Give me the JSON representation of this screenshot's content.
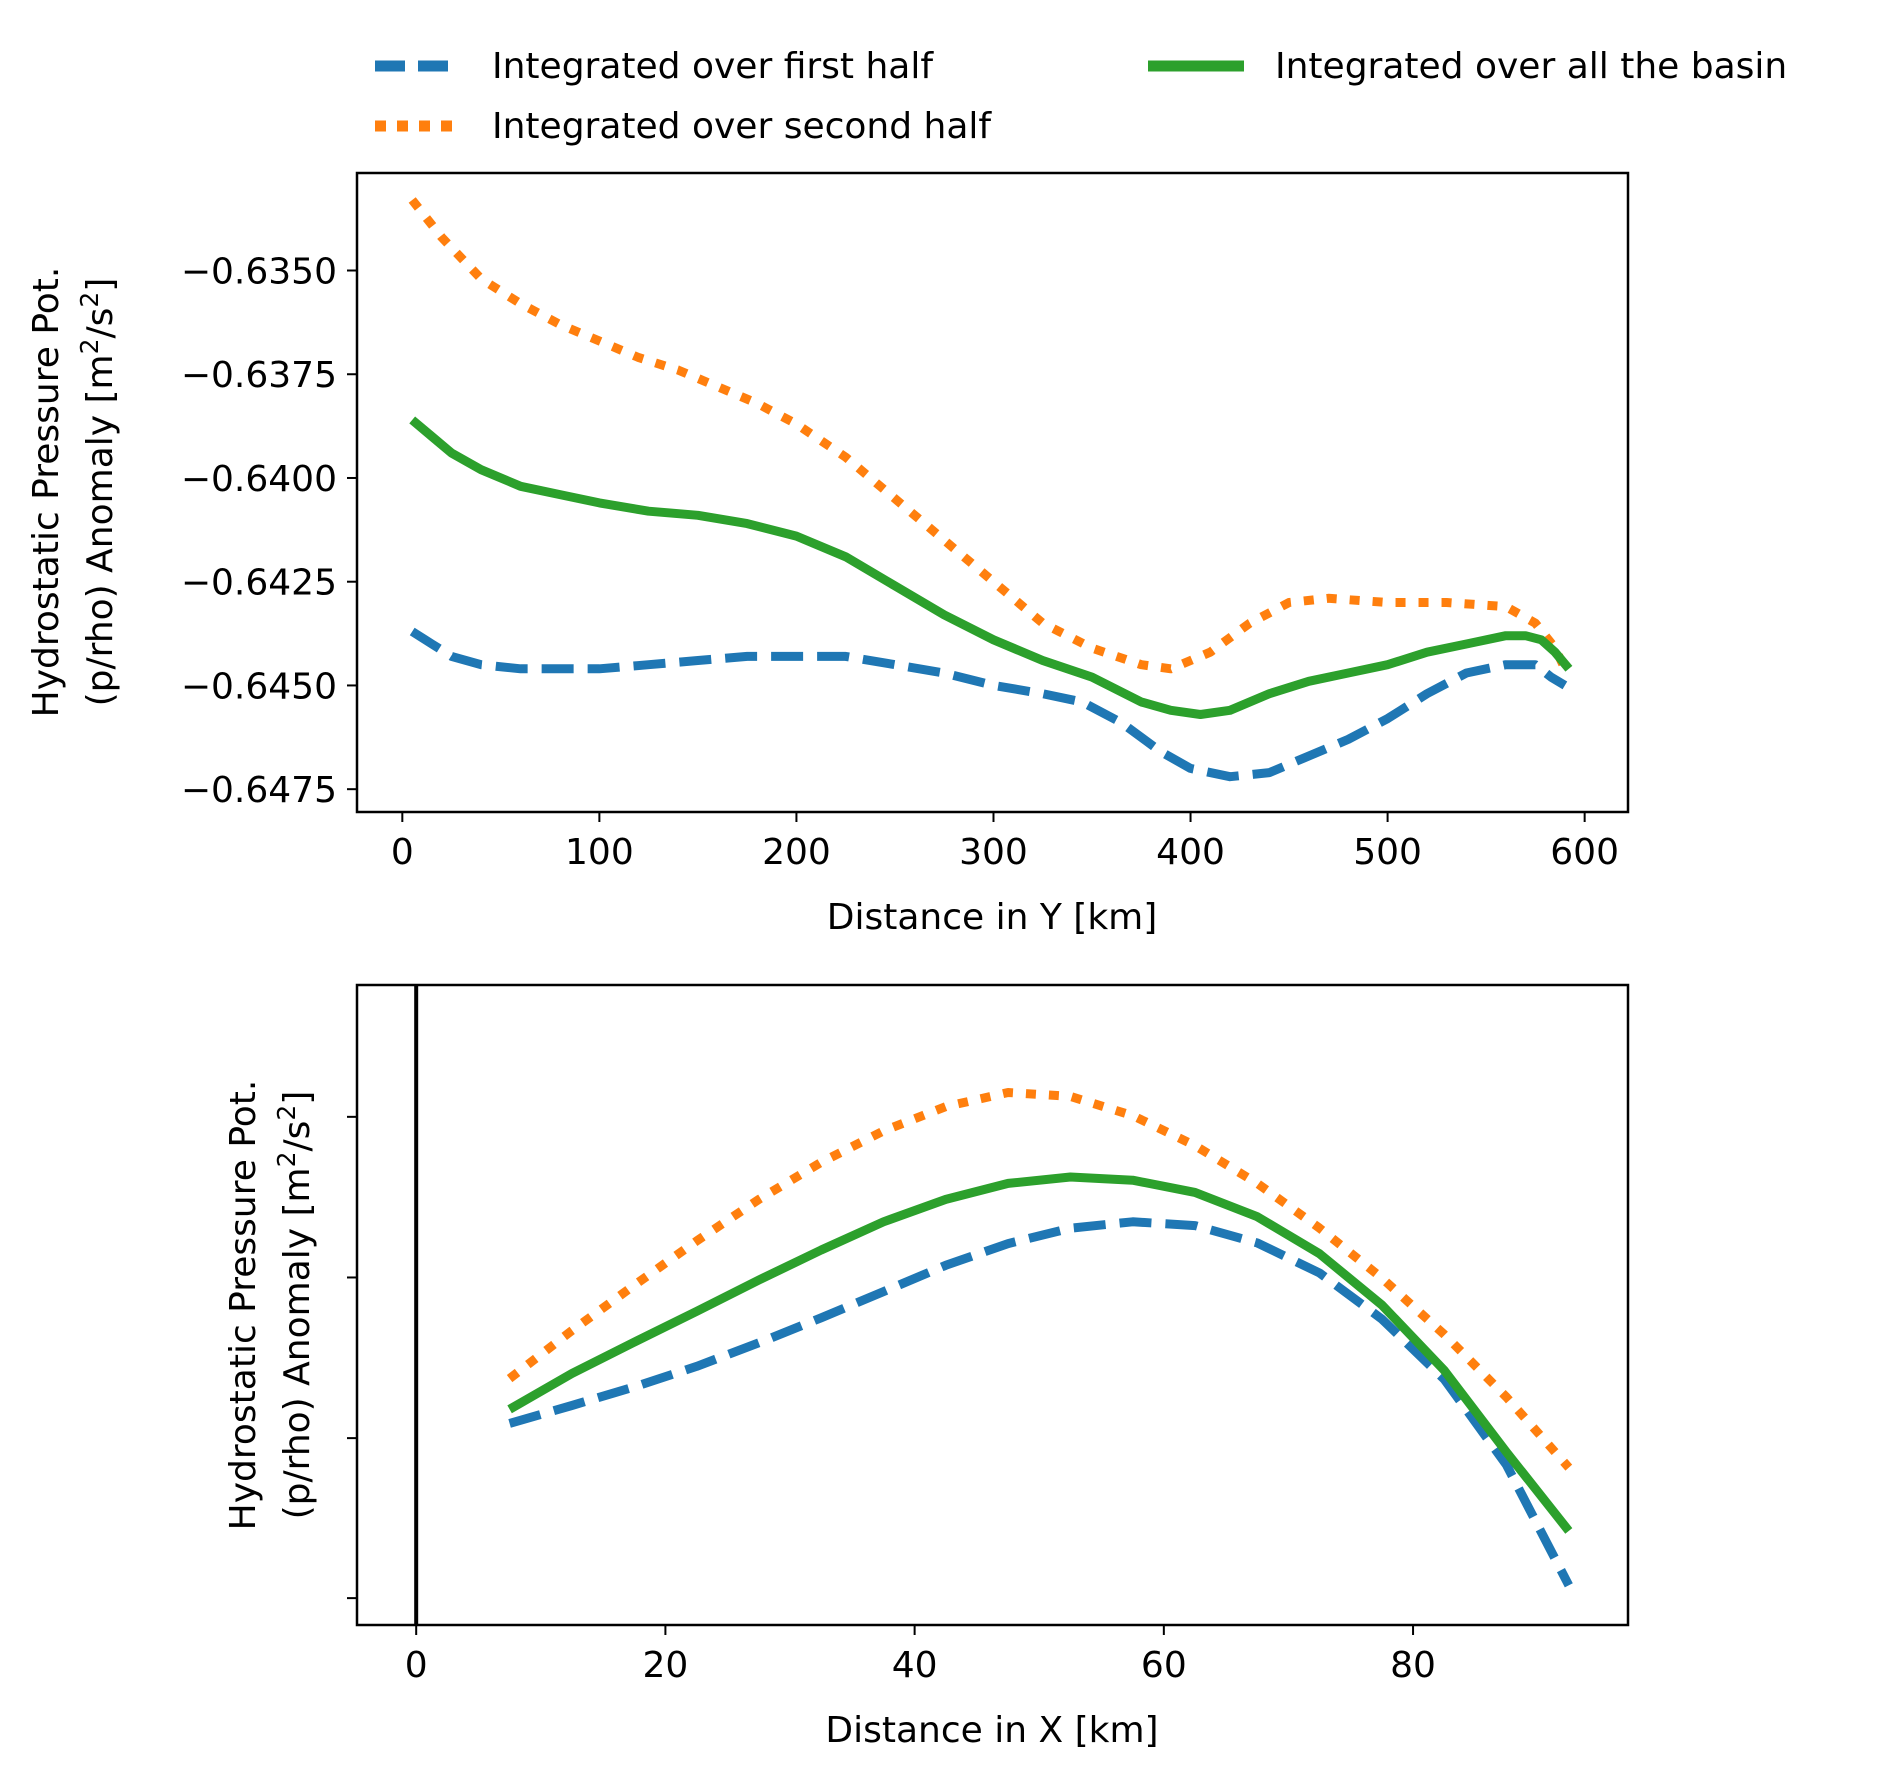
{
  "legend": {
    "placement": "top",
    "entries": [
      {
        "label": "Integrated over first half",
        "color": "#1f77b4",
        "style": "dashed"
      },
      {
        "label": "Integrated over second half",
        "color": "#ff7f0e",
        "style": "dotted"
      },
      {
        "label": "Integrated over all the basin",
        "color": "#2ca02c",
        "style": "solid"
      }
    ]
  },
  "chart_data": [
    {
      "type": "line",
      "xlabel": "Distance in Y [km]",
      "ylabel_line1": "Hydrostatic Pressure Pot.",
      "ylabel_line2_pre": "(p/rho) Anomaly [m",
      "ylabel_sup1": "2",
      "ylabel_mid": "/s",
      "ylabel_sup2": "2",
      "ylabel_end": "]",
      "xlim": [
        -23,
        622
      ],
      "ylim": [
        -0.64805,
        -0.63265
      ],
      "xticks": [
        0,
        100,
        200,
        300,
        400,
        500,
        600
      ],
      "xtick_labels": [
        "0",
        "100",
        "200",
        "300",
        "400",
        "500",
        "600"
      ],
      "yticks": [
        -0.6475,
        -0.645,
        -0.6425,
        -0.64,
        -0.6375,
        -0.635
      ],
      "ytick_labels": [
        "−0.6475",
        "−0.6450",
        "−0.6425",
        "−0.6400",
        "−0.6375",
        "−0.6350"
      ],
      "grid": false,
      "series": [
        {
          "name": "Integrated over first half",
          "color": "#1f77b4",
          "style": "dashed",
          "x": [
            5,
            15,
            25,
            40,
            60,
            80,
            100,
            125,
            150,
            175,
            200,
            225,
            250,
            275,
            300,
            325,
            345,
            365,
            385,
            400,
            420,
            440,
            460,
            480,
            500,
            520,
            540,
            560,
            575,
            583,
            590
          ],
          "y": [
            -0.6437,
            -0.644,
            -0.6443,
            -0.6445,
            -0.6446,
            -0.6446,
            -0.6446,
            -0.6445,
            -0.6444,
            -0.6443,
            -0.6443,
            -0.6443,
            -0.6445,
            -0.6447,
            -0.645,
            -0.6452,
            -0.6454,
            -0.6459,
            -0.6466,
            -0.647,
            -0.6472,
            -0.6471,
            -0.6467,
            -0.6463,
            -0.6458,
            -0.6452,
            -0.6447,
            -0.6445,
            -0.6445,
            -0.6448,
            -0.645
          ]
        },
        {
          "name": "Integrated over second half",
          "color": "#ff7f0e",
          "style": "dotted",
          "x": [
            5,
            20,
            40,
            60,
            80,
            100,
            120,
            140,
            160,
            180,
            200,
            225,
            250,
            275,
            300,
            325,
            350,
            375,
            390,
            410,
            430,
            450,
            470,
            500,
            530,
            560,
            575,
            585,
            590
          ],
          "y": [
            -0.6333,
            -0.6342,
            -0.6352,
            -0.6358,
            -0.6363,
            -0.6367,
            -0.6371,
            -0.6374,
            -0.6378,
            -0.6382,
            -0.6387,
            -0.6395,
            -0.6405,
            -0.6415,
            -0.6425,
            -0.6435,
            -0.6441,
            -0.6445,
            -0.6446,
            -0.6442,
            -0.6435,
            -0.643,
            -0.6429,
            -0.643,
            -0.643,
            -0.6431,
            -0.6435,
            -0.6441,
            -0.6446
          ]
        },
        {
          "name": "Integrated over all the basin",
          "color": "#2ca02c",
          "style": "solid",
          "x": [
            5,
            15,
            25,
            40,
            60,
            80,
            100,
            125,
            150,
            175,
            200,
            225,
            250,
            275,
            300,
            325,
            350,
            375,
            390,
            405,
            420,
            440,
            460,
            480,
            500,
            520,
            540,
            560,
            570,
            578,
            585,
            592
          ],
          "y": [
            -0.6386,
            -0.639,
            -0.6394,
            -0.6398,
            -0.6402,
            -0.6404,
            -0.6406,
            -0.6408,
            -0.6409,
            -0.6411,
            -0.6414,
            -0.6419,
            -0.6426,
            -0.6433,
            -0.6439,
            -0.6444,
            -0.6448,
            -0.6454,
            -0.6456,
            -0.6457,
            -0.6456,
            -0.6452,
            -0.6449,
            -0.6447,
            -0.6445,
            -0.6442,
            -0.644,
            -0.6438,
            -0.6438,
            -0.6439,
            -0.6442,
            -0.6446
          ]
        }
      ]
    },
    {
      "type": "line",
      "xlabel": "Distance in X [km]",
      "ylabel_line1": "Hydrostatic Pressure Pot.",
      "ylabel_line2_pre": "(p/rho) Anomaly [m",
      "ylabel_sup1": "2",
      "ylabel_mid": "/s",
      "ylabel_sup2": "2",
      "ylabel_end": "]",
      "xlim": [
        -4.75,
        97.25
      ],
      "ylim": [
        0,
        1
      ],
      "xticks": [
        0,
        20,
        40,
        60,
        80
      ],
      "xtick_labels": [
        "0",
        "20",
        "40",
        "60",
        "80"
      ],
      "yticks": [
        0.042,
        0.292,
        0.543,
        0.794
      ],
      "ytick_labels": [
        "",
        "",
        "",
        ""
      ],
      "vline_x": 0,
      "grid": false,
      "series": [
        {
          "name": "Integrated over first half",
          "color": "#1f77b4",
          "style": "dashed",
          "x": [
            7.5,
            12.5,
            17.5,
            22.5,
            27.5,
            32.5,
            37.5,
            42.5,
            47.5,
            52.5,
            57.5,
            62.5,
            67.5,
            72.5,
            77.5,
            82.5,
            87.5,
            92.5
          ],
          "y": [
            0.315,
            0.343,
            0.372,
            0.404,
            0.441,
            0.48,
            0.521,
            0.562,
            0.596,
            0.62,
            0.63,
            0.624,
            0.597,
            0.55,
            0.478,
            0.384,
            0.25,
            0.062
          ]
        },
        {
          "name": "Integrated over second half",
          "color": "#ff7f0e",
          "style": "dotted",
          "x": [
            7.5,
            12.5,
            17.5,
            22.5,
            27.5,
            32.5,
            37.5,
            42.5,
            47.5,
            52.5,
            57.5,
            62.5,
            67.5,
            72.5,
            77.5,
            82.5,
            87.5,
            92.5
          ],
          "y": [
            0.385,
            0.46,
            0.531,
            0.6,
            0.665,
            0.723,
            0.772,
            0.81,
            0.832,
            0.826,
            0.796,
            0.749,
            0.69,
            0.62,
            0.542,
            0.454,
            0.356,
            0.246
          ]
        },
        {
          "name": "Integrated over all the basin",
          "color": "#2ca02c",
          "style": "solid",
          "x": [
            7.5,
            12.5,
            17.5,
            22.5,
            27.5,
            32.5,
            37.5,
            42.5,
            47.5,
            52.5,
            57.5,
            62.5,
            67.5,
            72.5,
            77.5,
            82.5,
            87.5,
            92.5
          ],
          "y": [
            0.337,
            0.393,
            0.442,
            0.49,
            0.539,
            0.586,
            0.63,
            0.665,
            0.69,
            0.7,
            0.695,
            0.676,
            0.638,
            0.58,
            0.5,
            0.398,
            0.27,
            0.147
          ]
        }
      ]
    }
  ]
}
